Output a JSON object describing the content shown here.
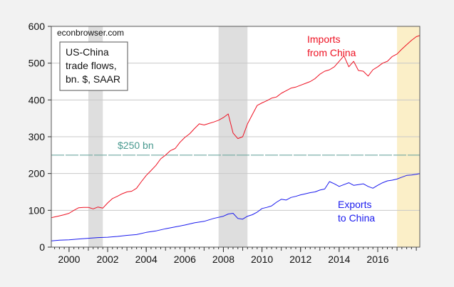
{
  "chart_data": {
    "type": "line",
    "title": "US-China trade flows, bn. $, SAAR",
    "source_label": "econbrowser.com",
    "legend_box": [
      "US-China",
      "trade flows,",
      "bn. $, SAAR"
    ],
    "xlabel": "",
    "ylabel": "",
    "xlim": [
      1999.08,
      2018.18
    ],
    "ylim": [
      0,
      600
    ],
    "yticks": [
      0,
      100,
      200,
      300,
      400,
      500,
      600
    ],
    "xticks": [
      2000,
      2002,
      2004,
      2006,
      2008,
      2010,
      2012,
      2014,
      2016
    ],
    "grid": true,
    "shaded_regions": [
      {
        "name": "recession-2001",
        "start": 2001.0,
        "end": 2001.75,
        "color": "#dedede"
      },
      {
        "name": "recession-2008",
        "start": 2007.75,
        "end": 2009.25,
        "color": "#dedede"
      },
      {
        "name": "recent-period",
        "start": 2017.0,
        "end": 2018.18,
        "color": "#fbefc8"
      }
    ],
    "reference_line": {
      "value": 250,
      "label": "$250 bn",
      "color": "#6fa8a0"
    },
    "series": [
      {
        "name": "Imports from China",
        "label_lines": [
          "Imports",
          "from China"
        ],
        "color": "#ee1122",
        "x": [
          1999.08,
          1999.25,
          1999.5,
          1999.75,
          2000.0,
          2000.25,
          2000.5,
          2000.75,
          2001.0,
          2001.25,
          2001.5,
          2001.75,
          2002.0,
          2002.25,
          2002.5,
          2002.75,
          2003.0,
          2003.25,
          2003.5,
          2003.75,
          2004.0,
          2004.25,
          2004.5,
          2004.75,
          2005.0,
          2005.25,
          2005.5,
          2005.75,
          2006.0,
          2006.25,
          2006.5,
          2006.75,
          2007.0,
          2007.25,
          2007.5,
          2007.75,
          2008.0,
          2008.25,
          2008.5,
          2008.75,
          2009.0,
          2009.25,
          2009.5,
          2009.75,
          2010.0,
          2010.25,
          2010.5,
          2010.75,
          2011.0,
          2011.25,
          2011.5,
          2011.75,
          2012.0,
          2012.25,
          2012.5,
          2012.75,
          2013.0,
          2013.25,
          2013.5,
          2013.75,
          2014.0,
          2014.25,
          2014.5,
          2014.75,
          2015.0,
          2015.25,
          2015.5,
          2015.75,
          2016.0,
          2016.25,
          2016.5,
          2016.75,
          2017.0,
          2017.25,
          2017.5,
          2017.75,
          2018.0,
          2018.18
        ],
        "values": [
          80,
          82,
          85,
          88,
          92,
          100,
          107,
          108,
          108,
          104,
          109,
          106,
          120,
          132,
          138,
          145,
          150,
          152,
          160,
          178,
          195,
          208,
          222,
          240,
          250,
          262,
          268,
          285,
          298,
          308,
          322,
          335,
          332,
          336,
          340,
          345,
          352,
          362,
          310,
          295,
          300,
          335,
          360,
          385,
          392,
          398,
          405,
          408,
          418,
          425,
          432,
          435,
          440,
          445,
          450,
          458,
          470,
          478,
          482,
          490,
          505,
          520,
          490,
          505,
          480,
          478,
          465,
          482,
          490,
          500,
          505,
          518,
          525,
          538,
          550,
          562,
          572,
          575
        ]
      },
      {
        "name": "Exports to China",
        "label_lines": [
          "Exports",
          "to China"
        ],
        "color": "#1a1aee",
        "x": [
          1999.08,
          1999.5,
          2000.0,
          2000.5,
          2001.0,
          2001.5,
          2002.0,
          2002.5,
          2003.0,
          2003.5,
          2004.0,
          2004.5,
          2005.0,
          2005.5,
          2006.0,
          2006.5,
          2007.0,
          2007.5,
          2008.0,
          2008.25,
          2008.5,
          2008.75,
          2009.0,
          2009.25,
          2009.5,
          2009.75,
          2010.0,
          2010.25,
          2010.5,
          2010.75,
          2011.0,
          2011.25,
          2011.5,
          2011.75,
          2012.0,
          2012.25,
          2012.5,
          2012.75,
          2013.0,
          2013.25,
          2013.5,
          2013.75,
          2014.0,
          2014.25,
          2014.5,
          2014.75,
          2015.0,
          2015.25,
          2015.5,
          2015.75,
          2016.0,
          2016.25,
          2016.5,
          2016.75,
          2017.0,
          2017.25,
          2017.5,
          2017.75,
          2018.0,
          2018.18
        ],
        "values": [
          17,
          19,
          20,
          22,
          24,
          26,
          27,
          29,
          32,
          34,
          40,
          44,
          50,
          55,
          60,
          66,
          70,
          78,
          84,
          90,
          92,
          78,
          76,
          84,
          88,
          95,
          105,
          108,
          112,
          122,
          130,
          128,
          135,
          138,
          142,
          145,
          148,
          150,
          155,
          158,
          178,
          172,
          165,
          170,
          175,
          168,
          170,
          172,
          165,
          160,
          168,
          175,
          180,
          182,
          185,
          190,
          195,
          196,
          198,
          200
        ]
      }
    ]
  }
}
